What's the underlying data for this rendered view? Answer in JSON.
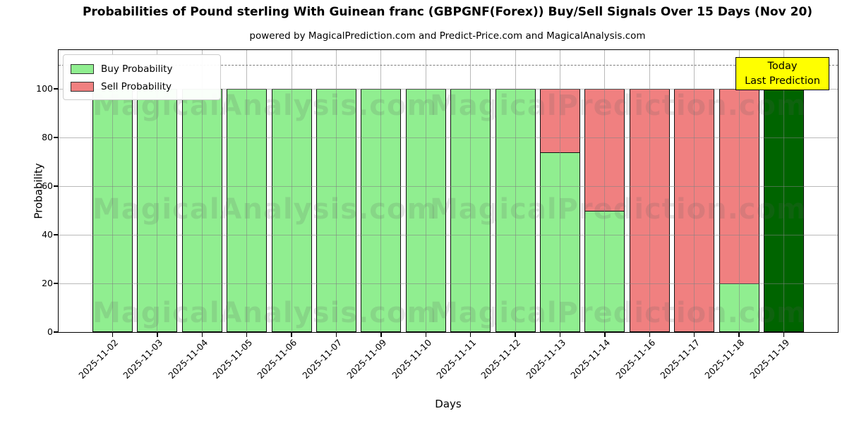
{
  "title": "Probabilities of Pound sterling With Guinean franc (GBPGNF(Forex)) Buy/Sell Signals Over 15 Days (Nov 20)",
  "subtitle": "powered by MagicalPrediction.com and Predict-Price.com and MagicalAnalysis.com",
  "legend": {
    "items": [
      {
        "label": "Buy Probability",
        "color": "#90EE90"
      },
      {
        "label": "Sell Probability",
        "color": "#F08080"
      }
    ]
  },
  "annotation": {
    "line1": "Today",
    "line2": "Last Prediction",
    "bg": "#FFFF00",
    "border": "#000000"
  },
  "watermarks": {
    "left_text": "MagicalAnalysis.com",
    "right_text": "MagicalPrediction.com"
  },
  "chart_data": {
    "type": "bar",
    "stacked": true,
    "title": "Probabilities of Pound sterling With Guinean franc (GBPGNF(Forex)) Buy/Sell Signals Over 15 Days (Nov 20)",
    "xlabel": "Days",
    "ylabel": "Probability",
    "categories": [
      "2025-11-02",
      "2025-11-03",
      "2025-11-04",
      "2025-11-05",
      "2025-11-06",
      "2025-11-07",
      "2025-11-09",
      "2025-11-10",
      "2025-11-11",
      "2025-11-12",
      "2025-11-13",
      "2025-11-14",
      "2025-11-16",
      "2025-11-17",
      "2025-11-18",
      "2025-11-19"
    ],
    "series": [
      {
        "name": "Buy Probability",
        "color": "#90EE90",
        "values": [
          100,
          100,
          100,
          100,
          100,
          100,
          100,
          100,
          100,
          100,
          74,
          50,
          0,
          0,
          20,
          100
        ]
      },
      {
        "name": "Sell Probability",
        "color": "#F08080",
        "values": [
          0,
          0,
          0,
          0,
          0,
          0,
          0,
          0,
          0,
          0,
          26,
          50,
          100,
          100,
          80,
          0
        ]
      }
    ],
    "today_index": 15,
    "today_color": "#006400",
    "bar_edge_color": "#000000",
    "yticks": [
      0,
      20,
      40,
      60,
      80,
      100
    ],
    "ylim": [
      0,
      116
    ],
    "dashed_line_y": 110,
    "grid": "both",
    "legend_position": "upper left"
  }
}
